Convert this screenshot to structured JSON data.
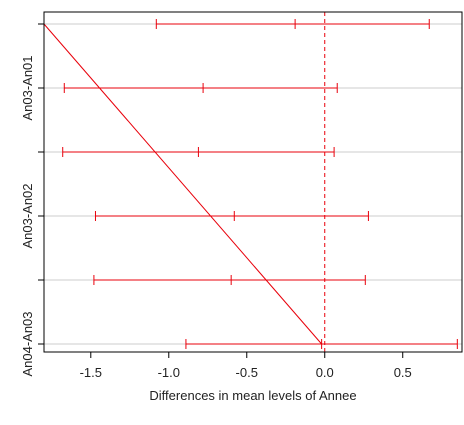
{
  "chart_data": {
    "type": "errorbar",
    "xlabel": "Differences in mean levels of Annee",
    "ylabel": "",
    "xlim": [
      -1.8,
      0.88
    ],
    "xticks": [
      -1.5,
      -1.0,
      -0.5,
      0.0,
      0.5
    ],
    "xtick_labels": [
      "-1.5",
      "-1.0",
      "-0.5",
      "0.0",
      "0.5"
    ],
    "reference_line_x": 0.0,
    "grid": "horizontal",
    "rows": [
      {
        "label": "",
        "lwr": -1.08,
        "diff": -0.19,
        "upr": 0.67
      },
      {
        "label": "An03-An01",
        "lwr": -1.67,
        "diff": -0.78,
        "upr": 0.08
      },
      {
        "label": "",
        "lwr": -1.68,
        "diff": -0.81,
        "upr": 0.06
      },
      {
        "label": "An03-An02",
        "lwr": -1.47,
        "diff": -0.58,
        "upr": 0.28
      },
      {
        "label": "",
        "lwr": -1.48,
        "diff": -0.6,
        "upr": 0.26
      },
      {
        "label": "An04-An03",
        "lwr": -0.89,
        "diff": -0.02,
        "upr": 0.85
      }
    ],
    "diagonal_line": {
      "from": [
        -1.8,
        6
      ],
      "to": [
        -0.02,
        1
      ]
    },
    "colors": {
      "intervals": "#e8000b",
      "reference": "#e8000b",
      "grid": "#cccccc",
      "axis": "#000000"
    }
  }
}
